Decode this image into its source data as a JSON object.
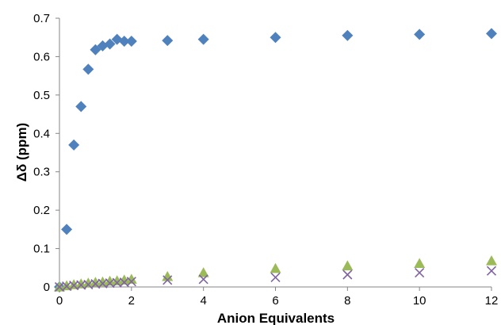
{
  "chart_data": {
    "type": "scatter",
    "title": "",
    "xlabel": "Anion Equivalents",
    "ylabel": "Δδ (ppm)",
    "xlim": [
      0,
      12
    ],
    "ylim": [
      0,
      0.7
    ],
    "x_ticks": [
      0,
      2,
      4,
      6,
      8,
      10,
      12
    ],
    "y_ticks": [
      0,
      0.1,
      0.2,
      0.3,
      0.4,
      0.5,
      0.6,
      0.7
    ],
    "y_tick_labels": [
      "0",
      "0.1",
      "0.2",
      "0.3",
      "0.4",
      "0.5",
      "0.6",
      "0.7"
    ],
    "grid": false,
    "legend": "none",
    "series": [
      {
        "marker": "diamond",
        "color": "#4F81BD",
        "x": [
          0,
          0.2,
          0.4,
          0.6,
          0.8,
          1.0,
          1.2,
          1.4,
          1.6,
          1.8,
          2.0,
          3,
          4,
          6,
          8,
          10,
          12
        ],
        "y": [
          0.0,
          0.15,
          0.37,
          0.47,
          0.567,
          0.618,
          0.628,
          0.633,
          0.645,
          0.64,
          0.64,
          0.642,
          0.645,
          0.65,
          0.655,
          0.658,
          0.66
        ]
      },
      {
        "marker": "triangle",
        "color": "#9BBB59",
        "x": [
          0,
          0.2,
          0.4,
          0.6,
          0.8,
          1.0,
          1.2,
          1.4,
          1.6,
          1.8,
          2.0,
          3,
          4,
          6,
          8,
          10,
          12
        ],
        "y": [
          0.0,
          0.003,
          0.006,
          0.008,
          0.01,
          0.012,
          0.013,
          0.015,
          0.016,
          0.018,
          0.02,
          0.027,
          0.037,
          0.048,
          0.055,
          0.061,
          0.068
        ]
      },
      {
        "marker": "x",
        "color": "#8064A2",
        "x": [
          0,
          0.2,
          0.4,
          0.6,
          0.8,
          1.0,
          1.2,
          1.4,
          1.6,
          1.8,
          2.0,
          3,
          4,
          6,
          8,
          10,
          12
        ],
        "y": [
          0.0,
          0.002,
          0.004,
          0.005,
          0.006,
          0.008,
          0.009,
          0.01,
          0.011,
          0.012,
          0.014,
          0.018,
          0.02,
          0.025,
          0.032,
          0.037,
          0.042
        ]
      }
    ]
  }
}
